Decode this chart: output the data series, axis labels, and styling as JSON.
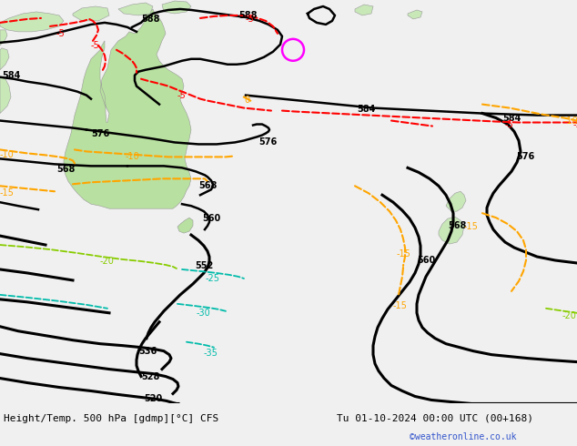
{
  "title_left": "Height/Temp. 500 hPa [gdmp][°C] CFS",
  "title_right": "Tu 01-10-2024 00:00 UTC (00+168)",
  "credit": "©weatheronline.co.uk",
  "ocean_color": "#d8d8d8",
  "land_color": "#c8e8b8",
  "aus_color": "#b8e0a0",
  "bottom_strip_color": "#f0f0f0",
  "title_color": "#000000",
  "credit_color": "#3355cc",
  "fig_width": 6.34,
  "fig_height": 4.9,
  "dpi": 100
}
